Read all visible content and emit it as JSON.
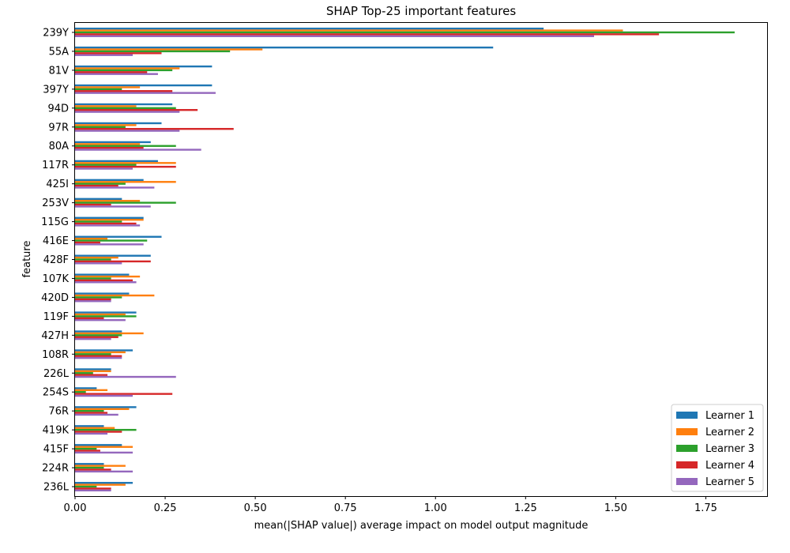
{
  "chart_data": {
    "type": "bar",
    "orientation": "horizontal",
    "title": "SHAP Top-25 important features",
    "xlabel": "mean(|SHAP value|) average impact on model output magnitude",
    "ylabel": "feature",
    "xlim": [
      0,
      1.92
    ],
    "xticks": [
      0.0,
      0.25,
      0.5,
      0.75,
      1.0,
      1.25,
      1.5,
      1.75
    ],
    "xtick_labels": [
      "0.00",
      "0.25",
      "0.50",
      "0.75",
      "1.00",
      "1.25",
      "1.50",
      "1.75"
    ],
    "grid": false,
    "legend_position": "lower-right",
    "categories": [
      "239Y",
      "55A",
      "81V",
      "397Y",
      "94D",
      "97R",
      "80A",
      "117R",
      "425I",
      "253V",
      "115G",
      "416E",
      "428F",
      "107K",
      "420D",
      "119F",
      "427H",
      "108R",
      "226L",
      "254S",
      "76R",
      "419K",
      "415F",
      "224R",
      "236L"
    ],
    "series": [
      {
        "name": "Learner 1",
        "color": "#1f77b4",
        "values": [
          1.3,
          1.16,
          0.38,
          0.38,
          0.27,
          0.24,
          0.21,
          0.23,
          0.19,
          0.13,
          0.19,
          0.24,
          0.21,
          0.15,
          0.15,
          0.17,
          0.13,
          0.16,
          0.1,
          0.06,
          0.17,
          0.08,
          0.13,
          0.08,
          0.16
        ]
      },
      {
        "name": "Learner 2",
        "color": "#ff7f0e",
        "values": [
          1.52,
          0.52,
          0.29,
          0.18,
          0.17,
          0.17,
          0.18,
          0.28,
          0.28,
          0.18,
          0.19,
          0.09,
          0.12,
          0.18,
          0.22,
          0.14,
          0.19,
          0.14,
          0.1,
          0.09,
          0.15,
          0.11,
          0.16,
          0.14,
          0.14
        ]
      },
      {
        "name": "Learner 3",
        "color": "#2ca02c",
        "values": [
          1.83,
          0.43,
          0.27,
          0.13,
          0.28,
          0.14,
          0.28,
          0.17,
          0.14,
          0.28,
          0.13,
          0.2,
          0.1,
          0.1,
          0.13,
          0.17,
          0.13,
          0.1,
          0.05,
          0.03,
          0.08,
          0.17,
          0.06,
          0.08,
          0.06
        ]
      },
      {
        "name": "Learner 4",
        "color": "#d62728",
        "values": [
          1.62,
          0.24,
          0.2,
          0.27,
          0.34,
          0.44,
          0.19,
          0.28,
          0.12,
          0.1,
          0.17,
          0.07,
          0.21,
          0.16,
          0.1,
          0.08,
          0.12,
          0.13,
          0.09,
          0.27,
          0.09,
          0.13,
          0.07,
          0.1,
          0.1
        ]
      },
      {
        "name": "Learner 5",
        "color": "#9467bd",
        "values": [
          1.44,
          0.16,
          0.23,
          0.39,
          0.29,
          0.29,
          0.35,
          0.16,
          0.22,
          0.21,
          0.18,
          0.19,
          0.13,
          0.17,
          0.1,
          0.14,
          0.1,
          0.13,
          0.28,
          0.16,
          0.12,
          0.09,
          0.16,
          0.16,
          0.1
        ]
      }
    ]
  }
}
